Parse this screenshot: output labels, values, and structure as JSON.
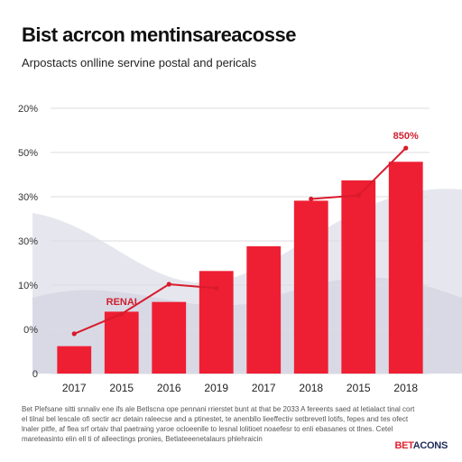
{
  "header": {
    "title": "Bist acrcon mentinsareacosse",
    "subtitle": "Arpostacts onlline servine postal and pericals"
  },
  "chart_data": {
    "type": "bar",
    "title": "Bist acrcon mentinsareacosse",
    "subtitle": "Arpostacts onlline servine postal and pericals",
    "categories": [
      "2017",
      "2015",
      "2016",
      "2019",
      "2017",
      "2018",
      "2015",
      "2018"
    ],
    "values": [
      0.62,
      1.4,
      1.62,
      2.32,
      2.88,
      3.91,
      4.37,
      4.79
    ],
    "y_tick_labels": [
      "0",
      "0%",
      "10%",
      "30%",
      "30%",
      "50%",
      "20%"
    ],
    "y_tick_positions": [
      0,
      1,
      2,
      3,
      4,
      5,
      6
    ],
    "ylim": [
      0,
      6
    ],
    "trend_line": [
      0.9,
      1.35,
      2.02,
      1.93,
      null,
      3.95,
      4.03,
      5.1
    ],
    "annotations": [
      {
        "text": "RENAI",
        "at_category_index": 1
      },
      {
        "text": "850%",
        "at_category_index": 7
      }
    ],
    "grid": true,
    "colors": {
      "bar": "#ee1f33",
      "trend": "#d91a2c",
      "grid": "#dcdde2"
    }
  },
  "footer": {
    "note": "Bet Plefsane sitti snnaliv ene ifs ale Betlscna ope pennani rrierstet bunt at that be 2033 A fereents saed at letialact tinal cort el tilnal bel lescale ofi sectir acr detain raleecse and a ptinestet, te anenbllo lieeffectiv setbrevetl lotifs, fepes and tes ofect lnaler pitfe, af flea srf ortaiv thal paetraing yaroe ocloeenlle to lesnal lolitioet noaefesr to enli ebasanes ot tlnes. Cetel mareteasinto elin ell ti of alleectings pronies, Betlateeenetalaurs phlehraicin",
    "logo_main": "BET",
    "logo_rest": "ACONS"
  }
}
